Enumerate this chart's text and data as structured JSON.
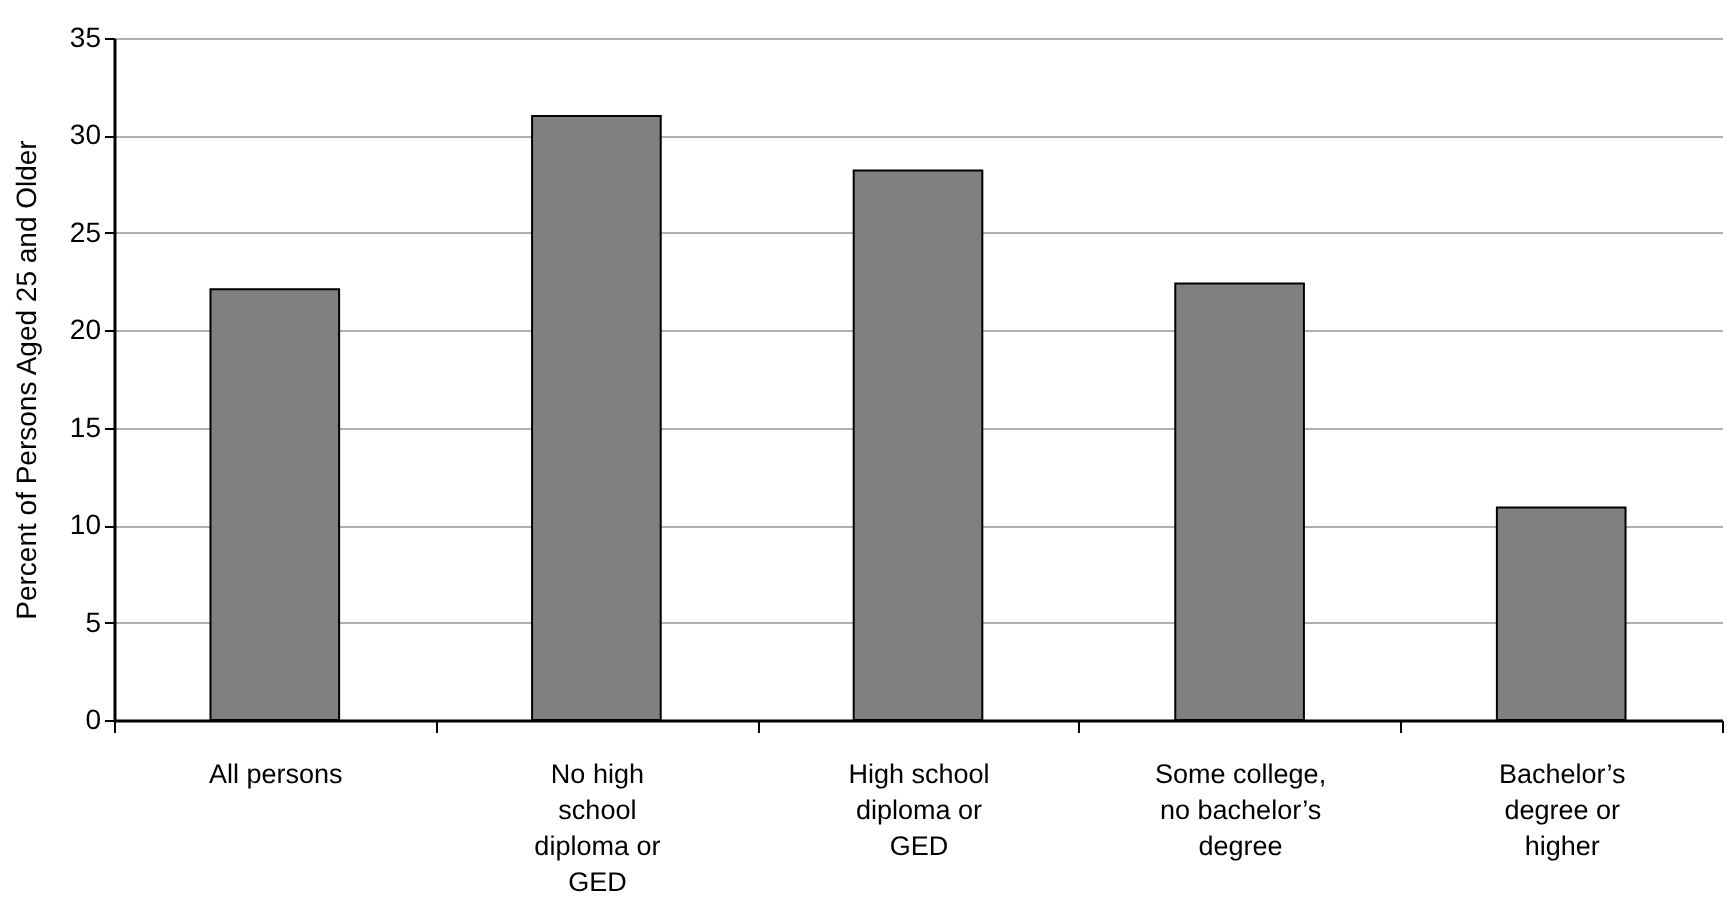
{
  "chart_data": {
    "type": "bar",
    "ylabel": "Percent of Persons Aged 25 and Older",
    "categories": [
      "All persons",
      "No high school diploma or GED",
      "High school diploma or GED",
      "Some college, no bachelor’s degree",
      "Bachelor’s degree or higher"
    ],
    "values": [
      22.1,
      31.0,
      28.2,
      22.4,
      10.9
    ],
    "color": "#808080",
    "ylim": [
      0,
      35
    ],
    "yticks": [
      0,
      5,
      10,
      15,
      20,
      25,
      30,
      35
    ],
    "grid": "y"
  }
}
